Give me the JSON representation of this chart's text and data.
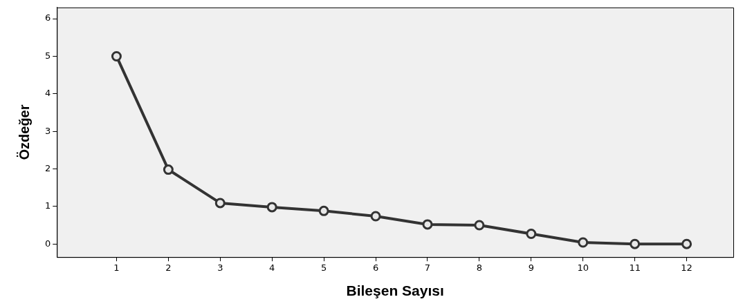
{
  "chart_data": {
    "type": "line",
    "xlabel": "Bileşen Sayısı",
    "ylabel": "Özdeğer",
    "x": [
      1,
      2,
      3,
      4,
      5,
      6,
      7,
      8,
      9,
      10,
      11,
      12
    ],
    "series": [
      {
        "color": "#333333",
        "values": [
          5.0,
          1.98,
          1.09,
          0.98,
          0.88,
          0.74,
          0.52,
          0.5,
          0.27,
          0.04,
          0.0,
          0.0
        ]
      }
    ],
    "xlim": [
      -0.15,
      12.9
    ],
    "xticks": [
      1,
      2,
      3,
      4,
      5,
      6,
      7,
      8,
      9,
      10,
      11,
      12
    ],
    "ylim": [
      -0.35,
      6.3
    ],
    "yticks": [
      0,
      1,
      2,
      3,
      4,
      5,
      6
    ],
    "marker": "circle",
    "line_style": "solid",
    "grid": false,
    "legend": false
  }
}
